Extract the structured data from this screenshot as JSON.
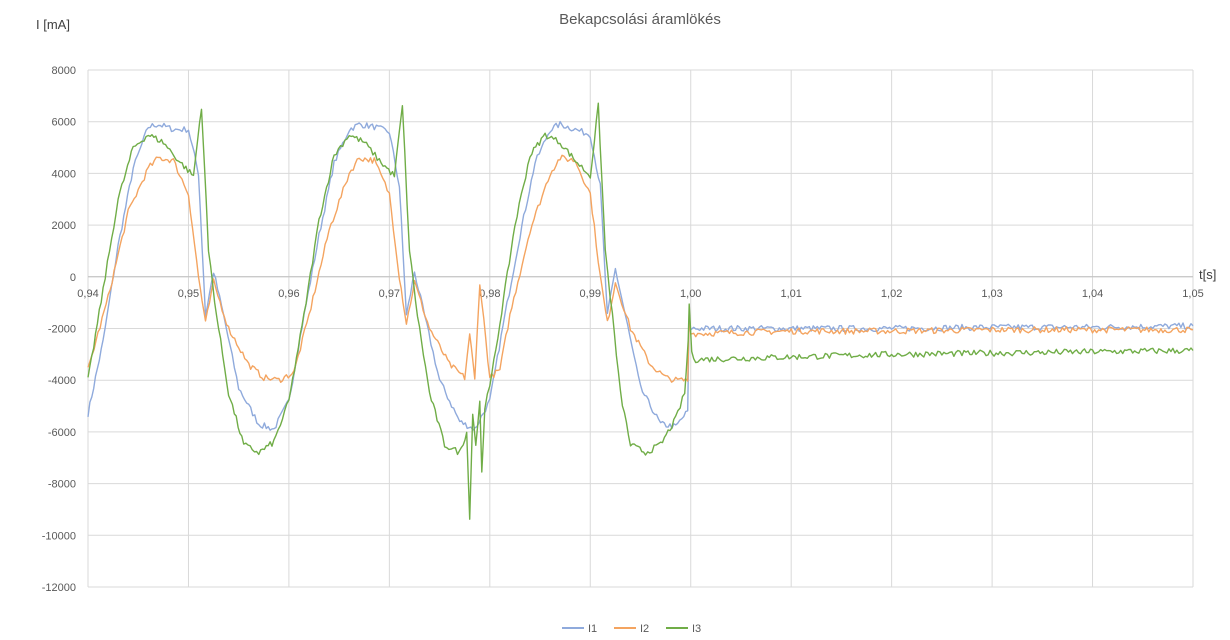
{
  "chart_data": {
    "type": "line",
    "title": "Bekapcsolási áramlökés",
    "ylabel": "I  [mA]",
    "xlabel": "t[s]",
    "xlim": [
      0.94,
      1.05
    ],
    "ylim": [
      -12000,
      8000
    ],
    "x_ticks": [
      0.94,
      0.95,
      0.96,
      0.97,
      0.98,
      0.99,
      1.0,
      1.01,
      1.02,
      1.03,
      1.04,
      1.05
    ],
    "x_tick_labels": [
      "0,94",
      "0,95",
      "0,96",
      "0,97",
      "0,98",
      "0,99",
      "1,00",
      "1,01",
      "1,02",
      "1,03",
      "1,04",
      "1,05"
    ],
    "y_ticks": [
      -12000,
      -10000,
      -8000,
      -6000,
      -4000,
      -2000,
      0,
      2000,
      4000,
      6000,
      8000
    ],
    "y_tick_labels": [
      "-12000",
      "-10000",
      "-8000",
      "-6000",
      "-4000",
      "-2000",
      "0",
      "2000",
      "4000",
      "6000",
      "8000"
    ],
    "grid": "vertical and horizontal",
    "legend": "bottom-center",
    "series": [
      {
        "name": "I1",
        "color": "#8faadc",
        "x": [
          0.94,
          0.9415,
          0.943,
          0.9445,
          0.946,
          0.947,
          0.9485,
          0.95,
          0.951,
          0.9517,
          0.9525,
          0.9535,
          0.955,
          0.957,
          0.9585,
          0.96,
          0.9615,
          0.963,
          0.9645,
          0.966,
          0.967,
          0.9685,
          0.97,
          0.971,
          0.9717,
          0.9725,
          0.9735,
          0.975,
          0.977,
          0.9785,
          0.98,
          0.9815,
          0.983,
          0.9845,
          0.986,
          0.987,
          0.9885,
          0.99,
          0.991,
          0.9917,
          0.9925,
          0.9935,
          0.995,
          0.997,
          0.9985,
          0.9997,
          0.99985,
          1.0,
          1.0003,
          1.01,
          1.02,
          1.03,
          1.04,
          1.05
        ],
        "y": [
          -5300,
          -2500,
          1200,
          4200,
          5800,
          5900,
          5700,
          5700,
          4000,
          -1500,
          200,
          -1500,
          -4300,
          -5700,
          -5900,
          -4800,
          -1500,
          1600,
          4400,
          5700,
          5900,
          5800,
          5600,
          3500,
          -1500,
          200,
          -1500,
          -4000,
          -5600,
          -5900,
          -4800,
          -1500,
          1600,
          4400,
          5700,
          5900,
          5700,
          5500,
          3500,
          -1500,
          300,
          -1500,
          -4300,
          -5700,
          -5800,
          -5200,
          -1500,
          -2000,
          -2000,
          -2000,
          -2000,
          -1950,
          -1950,
          -1900
        ]
      },
      {
        "name": "I2",
        "color": "#f4a460",
        "x": [
          0.94,
          0.942,
          0.944,
          0.946,
          0.947,
          0.9485,
          0.95,
          0.951,
          0.9517,
          0.9525,
          0.954,
          0.956,
          0.9575,
          0.959,
          0.9605,
          0.962,
          0.964,
          0.966,
          0.967,
          0.9685,
          0.97,
          0.971,
          0.9717,
          0.9725,
          0.974,
          0.976,
          0.9775,
          0.978,
          0.9785,
          0.979,
          0.98,
          0.981,
          0.982,
          0.984,
          0.986,
          0.987,
          0.9885,
          0.99,
          0.991,
          0.9917,
          0.9925,
          0.994,
          0.996,
          0.9975,
          0.9985,
          0.9997,
          0.99985,
          1.0,
          1.0003,
          1.01,
          1.02,
          1.03,
          1.04,
          1.05
        ],
        "y": [
          -3600,
          -800,
          2500,
          4200,
          4600,
          4500,
          3200,
          0,
          -1800,
          -200,
          -2000,
          -3400,
          -3900,
          -4000,
          -3700,
          -1500,
          1800,
          4000,
          4600,
          4500,
          3200,
          0,
          -1800,
          -200,
          -2000,
          -3400,
          -3900,
          -2200,
          -4000,
          -200,
          -3900,
          -3600,
          -1500,
          1800,
          4000,
          4600,
          4500,
          3200,
          0,
          -1800,
          -200,
          -2000,
          -3400,
          -3900,
          -4000,
          -4000,
          -1500,
          -2100,
          -2200,
          -2100,
          -2100,
          -2050,
          -2050,
          -2050
        ]
      },
      {
        "name": "I3",
        "color": "#70ad47",
        "x": [
          0.94,
          0.9415,
          0.943,
          0.9445,
          0.946,
          0.9475,
          0.949,
          0.9505,
          0.9513,
          0.952,
          0.9528,
          0.954,
          0.9555,
          0.957,
          0.9585,
          0.96,
          0.9615,
          0.963,
          0.9645,
          0.966,
          0.9675,
          0.969,
          0.9705,
          0.9713,
          0.972,
          0.9728,
          0.974,
          0.9755,
          0.977,
          0.9777,
          0.978,
          0.9783,
          0.9786,
          0.979,
          0.9792,
          0.9795,
          0.98,
          0.981,
          0.9825,
          0.984,
          0.9855,
          0.987,
          0.9885,
          0.99,
          0.9908,
          0.9915,
          0.9922,
          0.993,
          0.994,
          0.9955,
          0.997,
          0.9985,
          0.9994,
          0.99975,
          0.99985,
          1.0001,
          1.0005,
          1.01,
          1.02,
          1.03,
          1.04,
          1.05
        ],
        "y": [
          -4000,
          -500,
          3000,
          5000,
          5500,
          5200,
          4500,
          3900,
          6600,
          1000,
          -1500,
          -4500,
          -6500,
          -6800,
          -6400,
          -4800,
          -1500,
          2200,
          4700,
          5500,
          5200,
          4500,
          3900,
          6600,
          1000,
          -1500,
          -4500,
          -6500,
          -6800,
          -6000,
          -9400,
          -5200,
          -6500,
          -4800,
          -7600,
          -5000,
          -4300,
          -1800,
          2000,
          4700,
          5500,
          5200,
          4500,
          3900,
          6600,
          1000,
          -1500,
          -4500,
          -6500,
          -6800,
          -6500,
          -5500,
          -4500,
          -2500,
          -1000,
          -3000,
          -3200,
          -3100,
          -3000,
          -2950,
          -2900,
          -2850
        ]
      }
    ]
  }
}
